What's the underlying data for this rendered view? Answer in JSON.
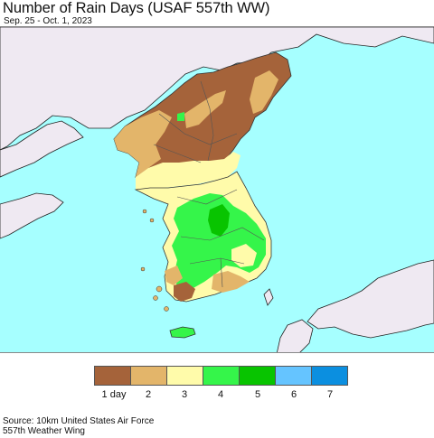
{
  "header": {
    "title": "Number of Rain Days (USAF 557th WW)",
    "subtitle": "Sep. 25 - Oct. 1, 2023"
  },
  "map": {
    "region": "Korean Peninsula",
    "sea_color": "#a6ffff",
    "foreign_land_color": "#efe9f2"
  },
  "legend": {
    "items": [
      {
        "label": "1 day",
        "color": "#a5633a"
      },
      {
        "label": "2",
        "color": "#e3b56a"
      },
      {
        "label": "3",
        "color": "#fffbaa"
      },
      {
        "label": "4",
        "color": "#35f54a"
      },
      {
        "label": "5",
        "color": "#08c400"
      },
      {
        "label": "6",
        "color": "#65c4ff"
      },
      {
        "label": "7",
        "color": "#0b8fe0"
      }
    ]
  },
  "footer": {
    "source_line1": "Source: 10km United States Air Force",
    "source_line2": "557th Weather Wing"
  }
}
